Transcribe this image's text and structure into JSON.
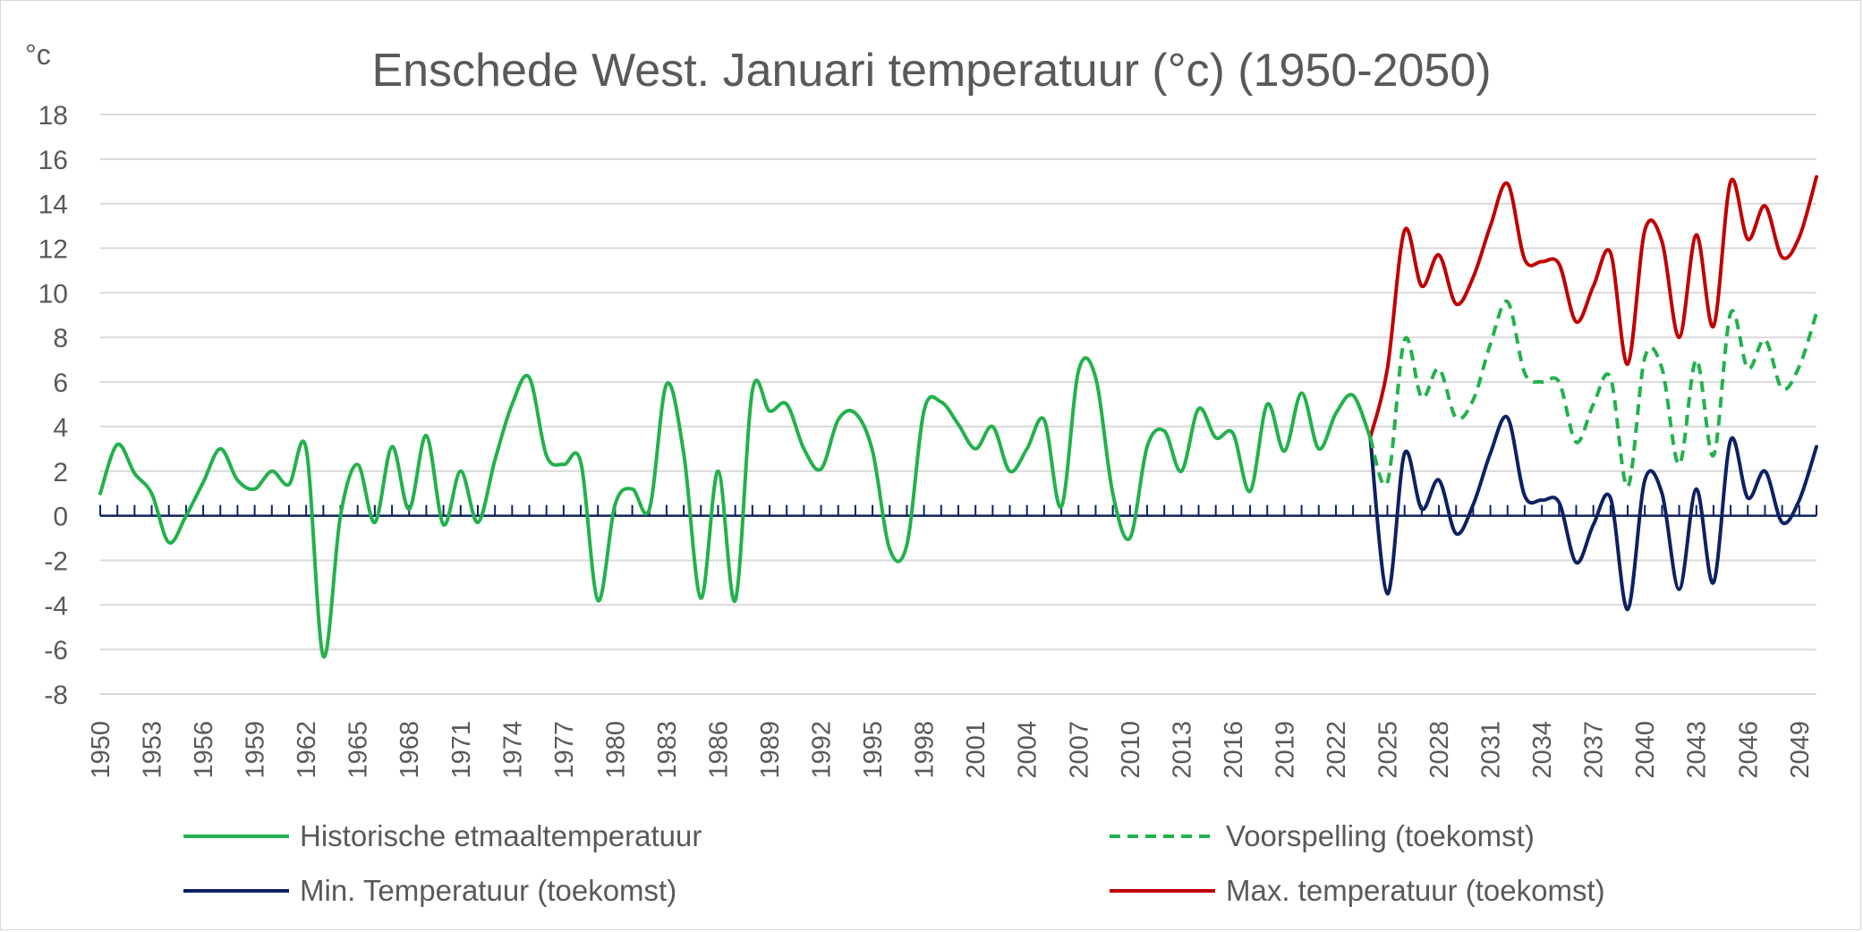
{
  "chart_data": {
    "type": "line",
    "title": "Enschede West. Januari temperatuur (°c) (1950-2050)",
    "ylabel": "°c",
    "xlabel": "",
    "ylim": [
      -8,
      18
    ],
    "yticks": [
      -8,
      -6,
      -4,
      -2,
      0,
      2,
      4,
      6,
      8,
      10,
      12,
      14,
      16,
      18
    ],
    "xticks": [
      1950,
      1953,
      1956,
      1959,
      1962,
      1965,
      1968,
      1971,
      1974,
      1977,
      1980,
      1983,
      1986,
      1989,
      1992,
      1995,
      1998,
      2001,
      2004,
      2007,
      2010,
      2013,
      2016,
      2019,
      2022,
      2025,
      2028,
      2031,
      2034,
      2037,
      2040,
      2043,
      2046,
      2049
    ],
    "xrange": [
      1950,
      2050
    ],
    "grid": true,
    "legend_position": "bottom",
    "series": [
      {
        "name": "Historische etmaaltemperatuur",
        "color": "#22b14c",
        "style": "solid",
        "x": [
          1950,
          1951,
          1952,
          1953,
          1954,
          1955,
          1956,
          1957,
          1958,
          1959,
          1960,
          1961,
          1962,
          1963,
          1964,
          1965,
          1966,
          1967,
          1968,
          1969,
          1970,
          1971,
          1972,
          1973,
          1974,
          1975,
          1976,
          1977,
          1978,
          1979,
          1980,
          1981,
          1982,
          1983,
          1984,
          1985,
          1986,
          1987,
          1988,
          1989,
          1990,
          1991,
          1992,
          1993,
          1994,
          1995,
          1996,
          1997,
          1998,
          1999,
          2000,
          2001,
          2002,
          2003,
          2004,
          2005,
          2006,
          2007,
          2008,
          2009,
          2010,
          2011,
          2012,
          2013,
          2014,
          2015,
          2016,
          2017,
          2018,
          2019,
          2020,
          2021,
          2022,
          2023,
          2024
        ],
        "values": [
          1.0,
          3.2,
          1.9,
          1.0,
          -1.2,
          0.0,
          1.5,
          3.0,
          1.6,
          1.2,
          2.0,
          1.4,
          3.0,
          -6.3,
          0.0,
          2.3,
          -0.3,
          3.1,
          0.3,
          3.6,
          -0.4,
          2.0,
          -0.3,
          2.5,
          5.0,
          6.2,
          2.7,
          2.3,
          2.4,
          -3.8,
          0.5,
          1.2,
          0.3,
          5.9,
          2.8,
          -3.7,
          2.0,
          -3.8,
          5.6,
          4.7,
          5.0,
          3.0,
          2.1,
          4.3,
          4.6,
          2.9,
          -1.5,
          -1.3,
          4.7,
          5.1,
          4.1,
          3.0,
          4.0,
          2.0,
          3.0,
          4.3,
          0.4,
          6.5,
          6.2,
          1.0,
          -1.0,
          3.1,
          3.8,
          2.0,
          4.8,
          3.5,
          3.7,
          1.1,
          5.0,
          2.9,
          5.5,
          3.0,
          4.6,
          5.4,
          3.5
        ]
      },
      {
        "name": "Voorspelling (toekomst)",
        "color": "#22b14c",
        "style": "dashed",
        "x": [
          2024,
          2025,
          2026,
          2027,
          2028,
          2029,
          2030,
          2031,
          2032,
          2033,
          2034,
          2035,
          2036,
          2037,
          2038,
          2039,
          2040,
          2041,
          2042,
          2043,
          2044,
          2045,
          2046,
          2047,
          2048,
          2049,
          2050
        ],
        "values": [
          3.5,
          1.5,
          7.9,
          5.3,
          6.6,
          4.4,
          5.2,
          7.7,
          9.6,
          6.4,
          6.0,
          6.0,
          3.3,
          5.0,
          6.2,
          1.3,
          7.1,
          6.6,
          2.3,
          7.0,
          2.7,
          9.1,
          6.6,
          7.9,
          5.7,
          6.7,
          9.1
        ]
      },
      {
        "name": "Min. Temperatuur (toekomst)",
        "color": "#0d2162",
        "style": "solid",
        "x": [
          2024,
          2025,
          2026,
          2027,
          2028,
          2029,
          2030,
          2031,
          2032,
          2033,
          2034,
          2035,
          2036,
          2037,
          2038,
          2039,
          2040,
          2041,
          2042,
          2043,
          2044,
          2045,
          2046,
          2047,
          2048,
          2049,
          2050
        ],
        "values": [
          3.5,
          -3.5,
          2.8,
          0.3,
          1.6,
          -0.8,
          0.5,
          2.8,
          4.4,
          0.9,
          0.7,
          0.6,
          -2.1,
          -0.4,
          0.8,
          -4.2,
          1.6,
          1.0,
          -3.3,
          1.2,
          -3.0,
          3.4,
          0.8,
          2.0,
          -0.3,
          0.7,
          3.1
        ]
      },
      {
        "name": "Max. temperatuur (toekomst)",
        "color": "#c00000",
        "style": "solid",
        "x": [
          2024,
          2025,
          2026,
          2027,
          2028,
          2029,
          2030,
          2031,
          2032,
          2033,
          2034,
          2035,
          2036,
          2037,
          2038,
          2039,
          2040,
          2041,
          2042,
          2043,
          2044,
          2045,
          2046,
          2047,
          2048,
          2049,
          2050
        ],
        "values": [
          3.5,
          6.6,
          12.8,
          10.3,
          11.7,
          9.5,
          10.7,
          13.0,
          14.9,
          11.5,
          11.4,
          11.3,
          8.7,
          10.3,
          11.8,
          6.8,
          12.8,
          12.3,
          8.0,
          12.6,
          8.5,
          15.0,
          12.4,
          13.9,
          11.6,
          12.5,
          15.2
        ]
      }
    ]
  }
}
